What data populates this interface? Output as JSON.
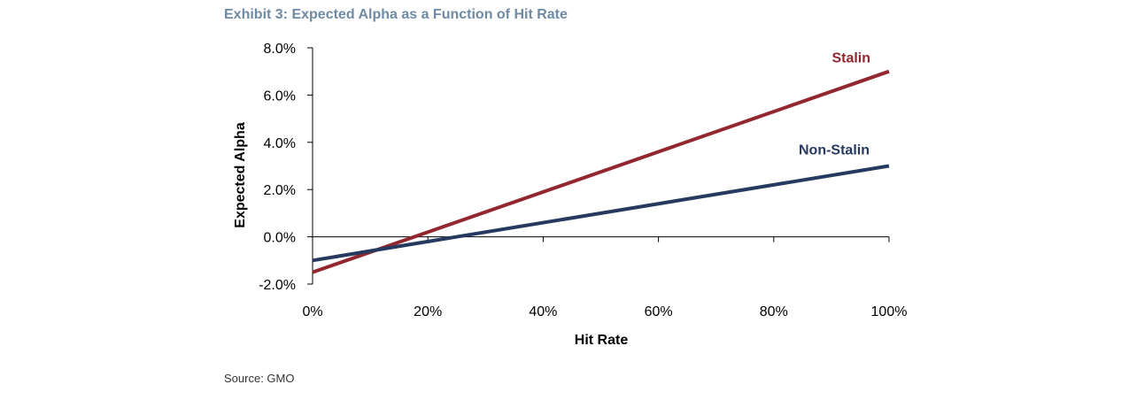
{
  "title": "Exhibit 3: Expected Alpha as a Function of Hit Rate",
  "source": "Source: GMO",
  "colors": {
    "stalin": "#92272f",
    "non_stalin": "#253a5e",
    "title": "#6f8aa5"
  },
  "chart_data": {
    "type": "line",
    "title": "Exhibit 3: Expected Alpha as a Function of Hit Rate",
    "xlabel": "Hit Rate",
    "ylabel": "Expected Alpha",
    "x": [
      0,
      100
    ],
    "xlim": [
      0,
      100
    ],
    "ylim": [
      -2,
      8
    ],
    "x_ticks": [
      0,
      20,
      40,
      60,
      80,
      100
    ],
    "y_ticks": [
      -2,
      0,
      2,
      4,
      6,
      8
    ],
    "x_tick_labels": [
      "0%",
      "20%",
      "40%",
      "60%",
      "80%",
      "100%"
    ],
    "y_tick_labels": [
      "-2.0%",
      "0.0%",
      "2.0%",
      "4.0%",
      "6.0%",
      "8.0%"
    ],
    "grid": false,
    "legend": "inline labels",
    "series": [
      {
        "name": "Stalin",
        "values": [
          -1.5,
          7.0
        ],
        "color": "#92272f"
      },
      {
        "name": "Non-Stalin",
        "values": [
          -1.0,
          3.0
        ],
        "color": "#253a5e"
      }
    ]
  }
}
